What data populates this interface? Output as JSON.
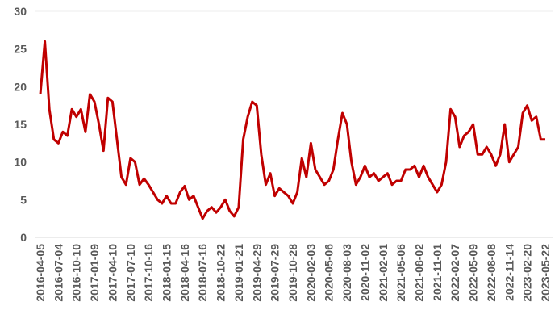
{
  "chart_data": {
    "type": "line",
    "categories": [
      "2016-04-05",
      null,
      null,
      null,
      "2016-07-04",
      null,
      null,
      null,
      "2016-10-10",
      null,
      null,
      null,
      "2017-01-09",
      null,
      null,
      null,
      "2017-04-10",
      null,
      null,
      null,
      "2017-07-10",
      null,
      null,
      null,
      "2017-10-16",
      null,
      null,
      null,
      "2018-01-15",
      null,
      null,
      null,
      "2018-04-16",
      null,
      null,
      null,
      "2018-07-16",
      null,
      null,
      null,
      "2018-10-22",
      null,
      null,
      null,
      "2019-01-21",
      null,
      null,
      null,
      "2019-04-29",
      null,
      null,
      null,
      "2019-07-29",
      null,
      null,
      null,
      "2019-10-28",
      null,
      null,
      null,
      "2020-02-03",
      null,
      null,
      null,
      "2020-05-06",
      null,
      null,
      null,
      "2020-08-03",
      null,
      null,
      null,
      "2020-11-02",
      null,
      null,
      null,
      "2021-02-01",
      null,
      null,
      null,
      "2021-05-06",
      null,
      null,
      null,
      "2021-08-02",
      null,
      null,
      null,
      "2021-11-01",
      null,
      null,
      null,
      "2022-02-07",
      null,
      null,
      null,
      "2022-05-09",
      null,
      null,
      null,
      "2022-08-08",
      null,
      null,
      null,
      "2022-11-14",
      null,
      null,
      null,
      "2023-02-20",
      null,
      null,
      null,
      "2023-05-22"
    ],
    "series": [
      {
        "color": "#c00000",
        "values": [
          19,
          26,
          17,
          13,
          12.5,
          14,
          13.5,
          17,
          16,
          17,
          14,
          19,
          18,
          15,
          11.5,
          18.5,
          18,
          13,
          8,
          7,
          10.5,
          10,
          7,
          7.8,
          7,
          6,
          5,
          4.5,
          5.5,
          4.5,
          4.5,
          6,
          6.8,
          5,
          5.5,
          4,
          2.5,
          3.5,
          4,
          3.3,
          4,
          5,
          3.5,
          2.8,
          4,
          13,
          16,
          18,
          17.5,
          11,
          7,
          8.5,
          5.5,
          6.5,
          6,
          5.5,
          4.5,
          6,
          10.5,
          8,
          12.5,
          9,
          8,
          7,
          7.5,
          9,
          13,
          16.5,
          15,
          10,
          7,
          8,
          9.5,
          8,
          8.5,
          7.5,
          8,
          8.5,
          7,
          7.5,
          7.5,
          9,
          9,
          9.5,
          8,
          9.5,
          8,
          7,
          6,
          7,
          10,
          17,
          16,
          12,
          13.5,
          14,
          15,
          11,
          11,
          12,
          11,
          9.5,
          11,
          15,
          10,
          11,
          12,
          16.5,
          17.5,
          15.5,
          16,
          13,
          13
        ]
      }
    ],
    "ylim": [
      0,
      30
    ],
    "yticks": [
      0,
      5,
      10,
      15,
      20,
      25,
      30
    ]
  }
}
